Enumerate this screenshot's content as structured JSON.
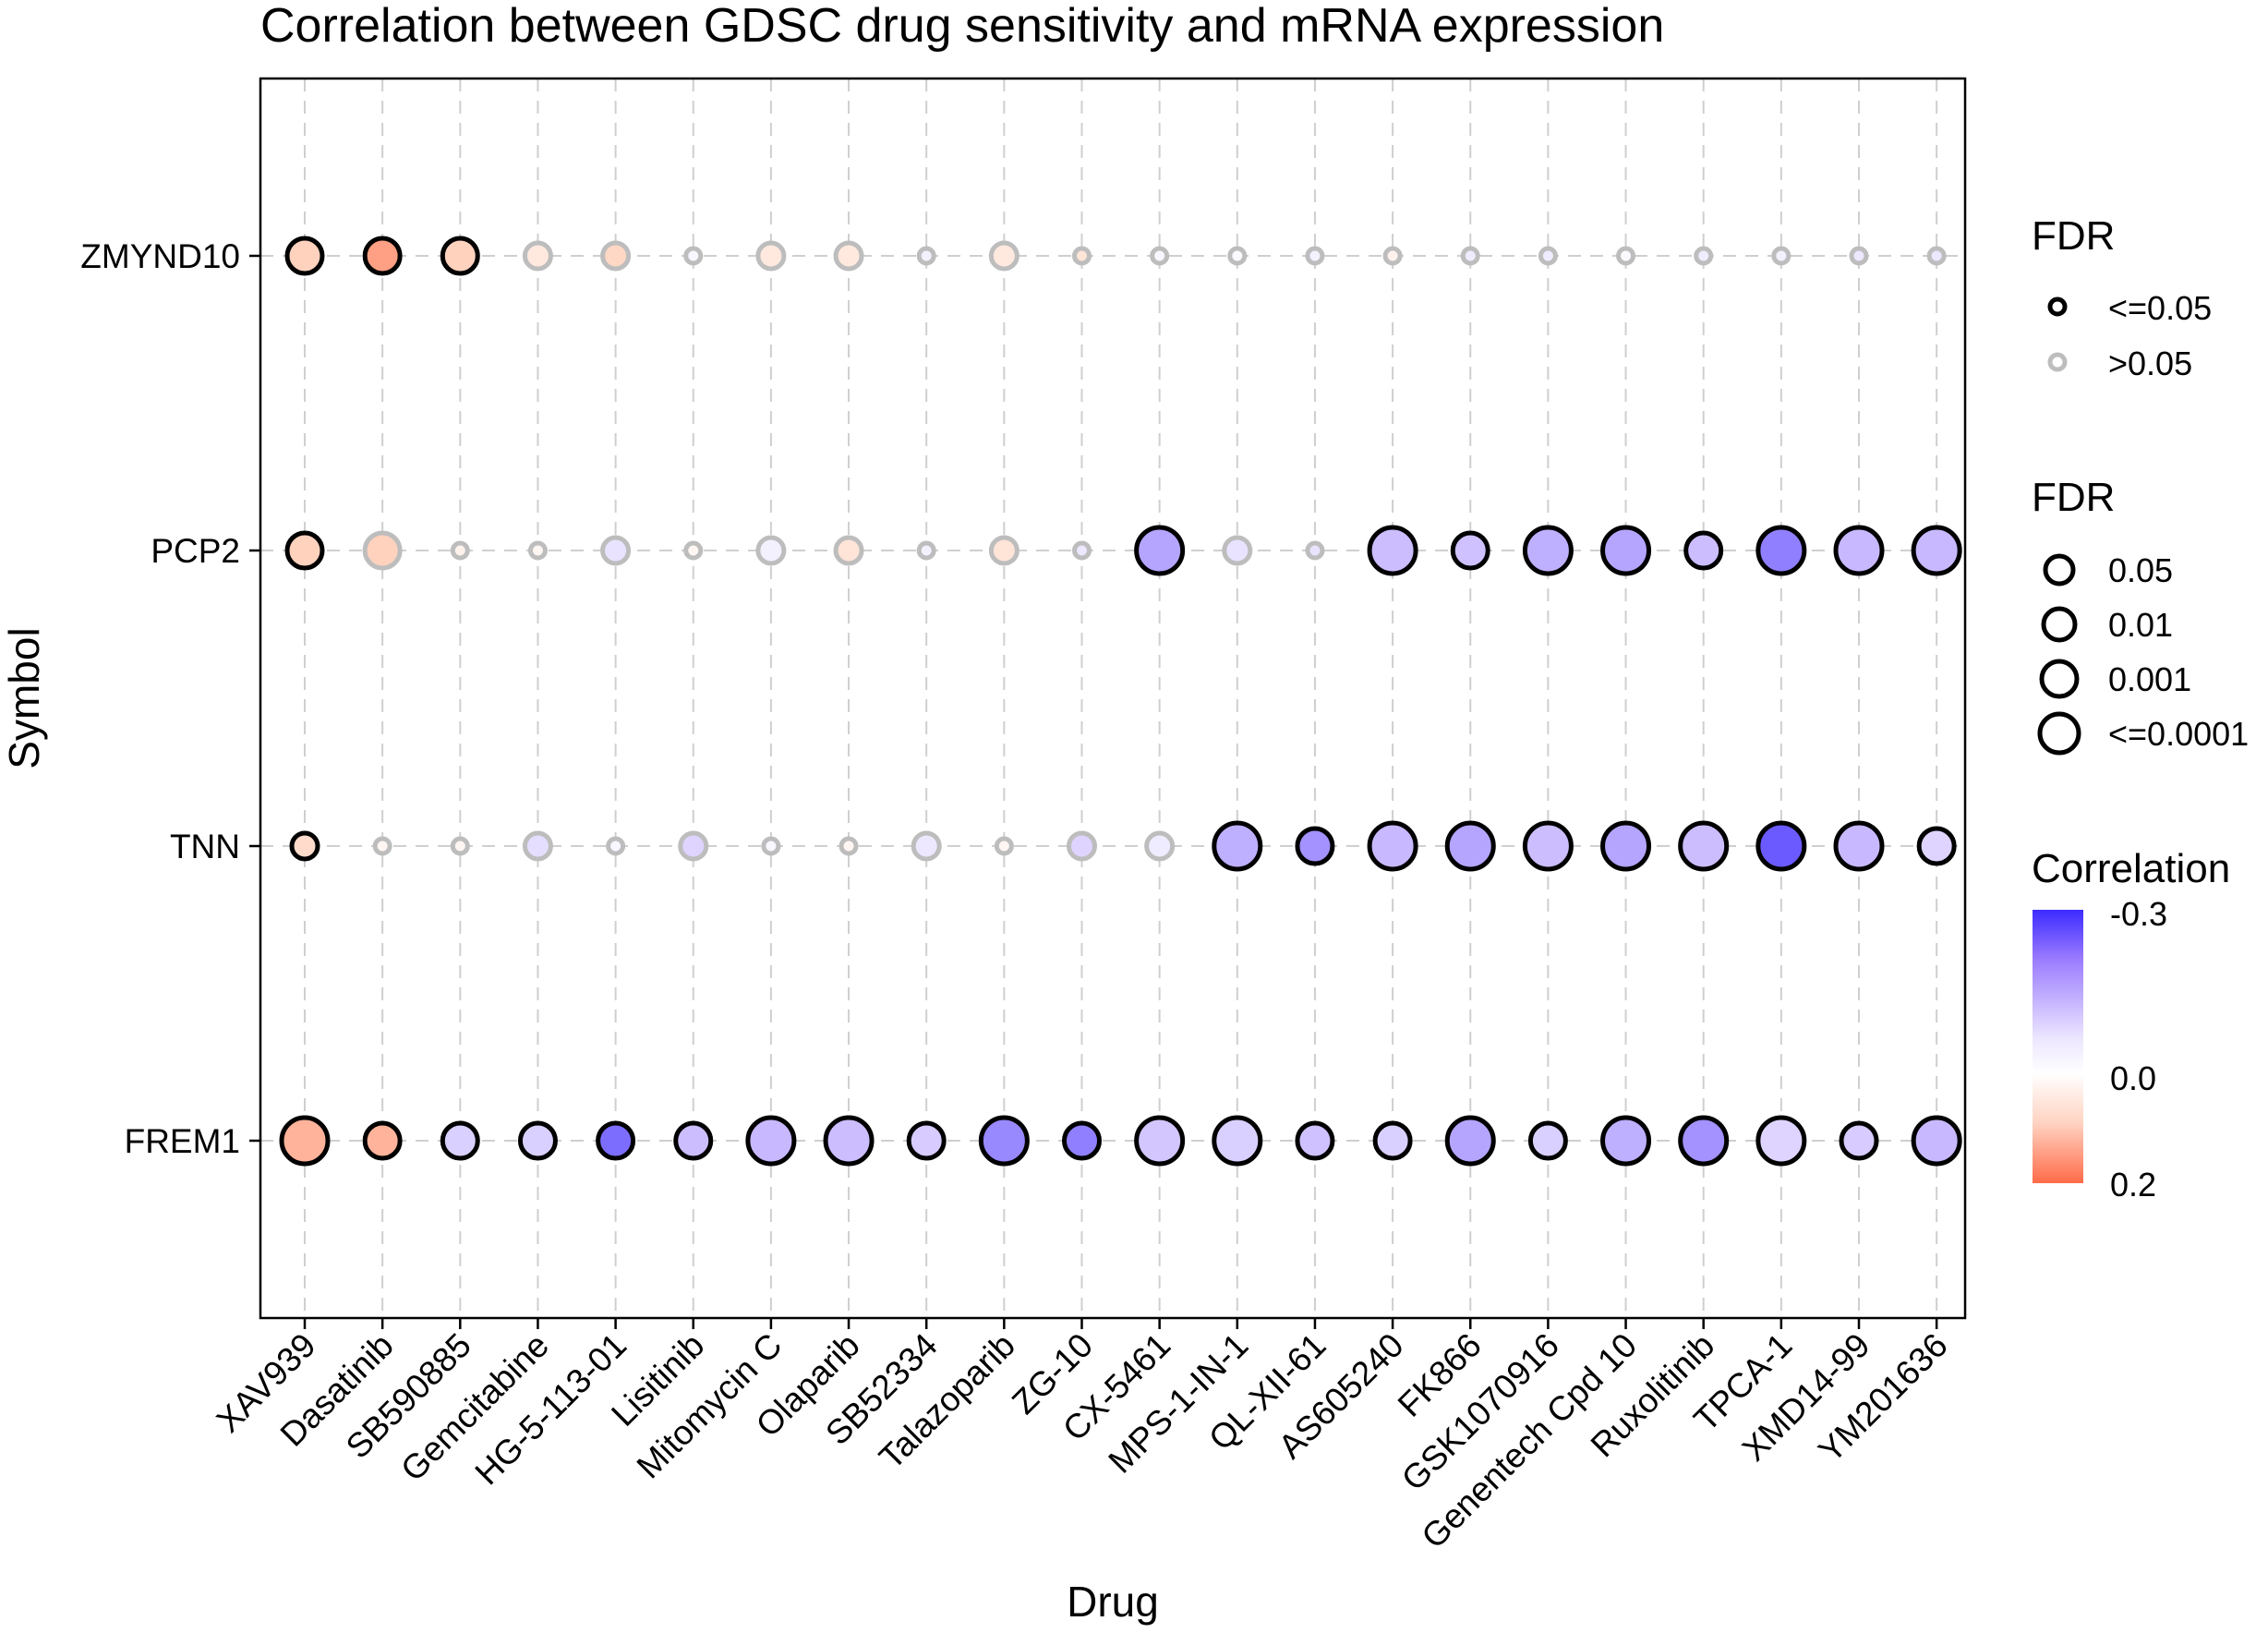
{
  "chart_data": {
    "type": "scatter",
    "title": "Correlation between GDSC drug sensitivity and mRNA expression",
    "xlabel": "Drug",
    "ylabel": "Symbol",
    "drugs": [
      "XAV939",
      "Dasatinib",
      "SB590885",
      "Gemcitabine",
      "HG-5-113-01",
      "Lisitinib",
      "Mitomycin C",
      "Olaparib",
      "SB52334",
      "Talazoparib",
      "ZG-10",
      "CX-5461",
      "MPS-1-IN-1",
      "QL-XII-61",
      "AS605240",
      "FK866",
      "GSK1070916",
      "Genentech Cpd 10",
      "Ruxolitinib",
      "TPCA-1",
      "XMD14-99",
      "YM201636"
    ],
    "symbols": [
      "ZMYND10",
      "PCP2",
      "TNN",
      "FREM1"
    ],
    "series": [
      {
        "name": "ZMYND10",
        "correlation": [
          0.1,
          0.15,
          0.1,
          0.05,
          0.09,
          -0.02,
          0.05,
          0.05,
          -0.03,
          0.05,
          0.06,
          -0.02,
          -0.01,
          -0.03,
          0.03,
          -0.04,
          -0.04,
          -0.01,
          -0.04,
          -0.03,
          -0.05,
          -0.05
        ],
        "fdr_level": [
          2,
          2,
          2,
          1,
          1,
          0,
          1,
          1,
          0,
          1,
          0,
          0,
          0,
          0,
          0,
          0,
          0,
          0,
          0,
          0,
          0,
          0
        ],
        "significant": [
          true,
          true,
          true,
          false,
          false,
          false,
          false,
          false,
          false,
          false,
          false,
          false,
          false,
          false,
          false,
          false,
          false,
          false,
          false,
          false,
          false,
          false
        ]
      },
      {
        "name": "PCP2",
        "correlation": [
          0.1,
          0.1,
          0.03,
          0.02,
          -0.06,
          0.02,
          -0.03,
          0.06,
          -0.03,
          0.06,
          -0.05,
          -0.17,
          -0.06,
          -0.06,
          -0.14,
          -0.13,
          -0.16,
          -0.17,
          -0.14,
          -0.21,
          -0.15,
          -0.15
        ],
        "fdr_level": [
          2,
          2,
          0,
          0,
          1,
          0,
          1,
          1,
          0,
          1,
          0,
          3,
          1,
          0,
          3,
          2,
          3,
          3,
          2,
          3,
          3,
          3
        ],
        "significant": [
          true,
          false,
          false,
          false,
          false,
          false,
          false,
          false,
          false,
          false,
          false,
          true,
          false,
          false,
          true,
          true,
          true,
          true,
          true,
          true,
          true,
          true
        ]
      },
      {
        "name": "TNN",
        "correlation": [
          0.08,
          0.02,
          0.02,
          -0.07,
          -0.02,
          -0.09,
          -0.02,
          0.02,
          -0.05,
          0.02,
          -0.09,
          -0.04,
          -0.16,
          -0.19,
          -0.15,
          -0.17,
          -0.14,
          -0.17,
          -0.14,
          -0.25,
          -0.15,
          -0.09
        ],
        "fdr_level": [
          1,
          0,
          0,
          1,
          0,
          1,
          0,
          0,
          1,
          0,
          1,
          1,
          3,
          2,
          3,
          3,
          3,
          3,
          3,
          3,
          3,
          2
        ],
        "significant": [
          true,
          false,
          false,
          false,
          false,
          false,
          false,
          false,
          false,
          false,
          false,
          false,
          true,
          true,
          true,
          true,
          true,
          true,
          true,
          true,
          true,
          true
        ]
      },
      {
        "name": "FREM1",
        "correlation": [
          0.13,
          0.13,
          -0.1,
          -0.1,
          -0.23,
          -0.14,
          -0.15,
          -0.14,
          -0.11,
          -0.2,
          -0.21,
          -0.12,
          -0.1,
          -0.13,
          -0.1,
          -0.17,
          -0.1,
          -0.16,
          -0.19,
          -0.09,
          -0.11,
          -0.15
        ],
        "fdr_level": [
          3,
          2,
          2,
          2,
          2,
          2,
          3,
          3,
          2,
          3,
          2,
          3,
          3,
          2,
          2,
          3,
          2,
          3,
          3,
          3,
          2,
          3
        ],
        "significant": [
          true,
          true,
          true,
          true,
          true,
          true,
          true,
          true,
          true,
          true,
          true,
          true,
          true,
          true,
          true,
          true,
          true,
          true,
          true,
          true,
          true,
          true
        ]
      }
    ],
    "legend_color_title": "FDR",
    "legend_color_labels": [
      "<=0.05",
      ">0.05"
    ],
    "legend_size_title": "FDR",
    "legend_size_labels": [
      "0.05",
      "0.01",
      "0.001",
      "<=0.0001"
    ],
    "legend_corr_title": "Correlation",
    "legend_corr_ticks": [
      "-0.3",
      "0.0",
      "0.2"
    ],
    "colors": {
      "high_neg": "#3c2bff",
      "zero": "#ffffff",
      "high_pos": "#ff6b48",
      "sig_stroke": "#000000",
      "nonsig_stroke": "#bdbdbd",
      "grid": "#cfcfcf"
    },
    "grid": true,
    "legend_position": "right"
  }
}
